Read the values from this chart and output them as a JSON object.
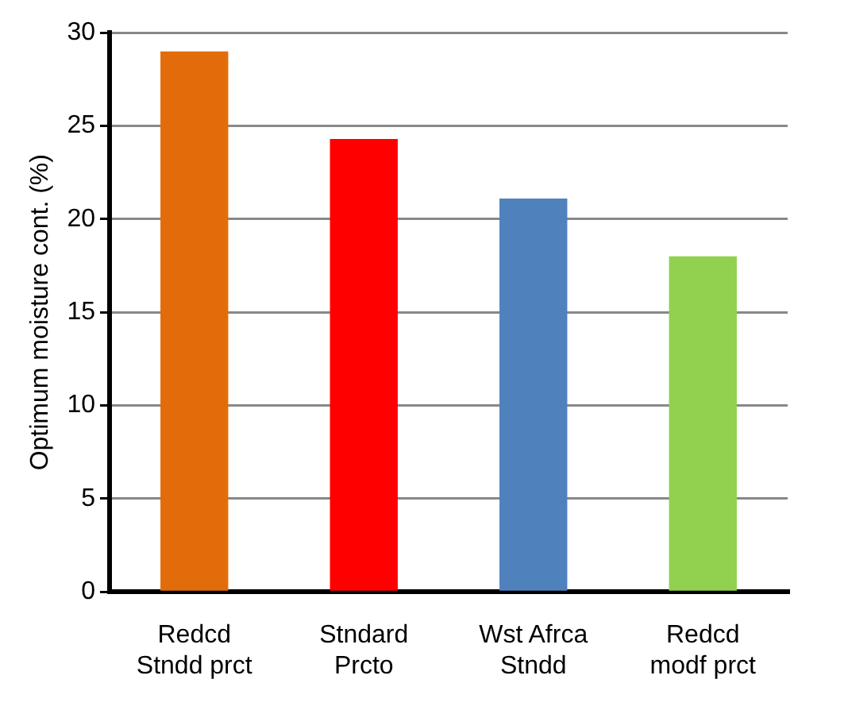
{
  "chart_data": {
    "type": "bar",
    "ylabel": "Optimum moisture cont. (%)",
    "categories": [
      "Redcd Stndd prct",
      "Stndard Prcto",
      "Wst Afrca Stndd",
      "Redcd modf prct"
    ],
    "values": [
      29.0,
      24.3,
      21.1,
      18.0
    ],
    "colors": [
      "#e36c0a",
      "#ff0000",
      "#4f81bd",
      "#92d050"
    ],
    "ylim": [
      0,
      30
    ],
    "yticks": [
      0,
      5,
      10,
      15,
      20,
      25,
      30
    ],
    "grid": "y",
    "legend": false
  }
}
